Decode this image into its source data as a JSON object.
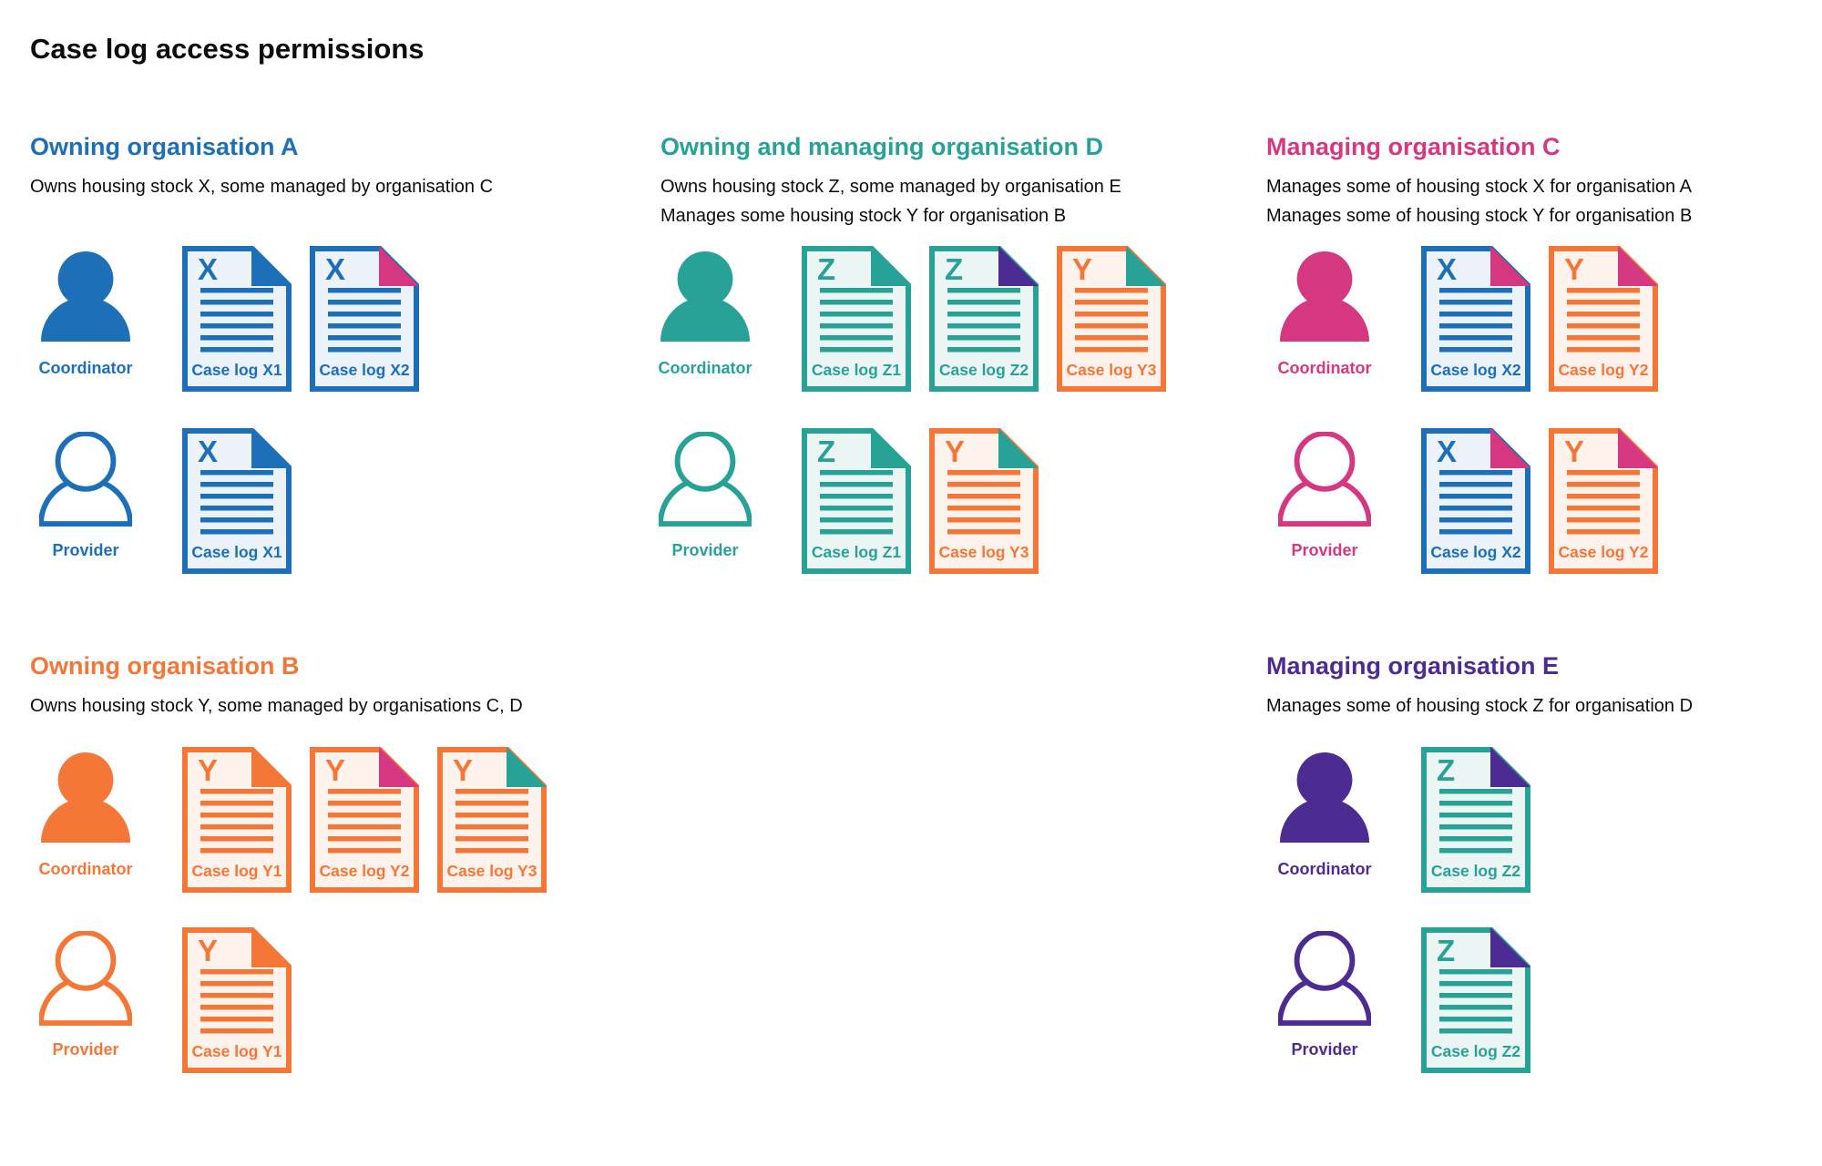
{
  "title": "Case log access permissions",
  "colors": {
    "blue": "#1d70b8",
    "teal": "#28a197",
    "pink": "#d53880",
    "purple": "#4c2c92",
    "orange": "#f47738",
    "text": "#0b0c0c",
    "blue_tint": "#ebf2fa",
    "teal_tint": "#ebf6f4",
    "orange_tint": "#fdf3ec"
  },
  "sections": [
    {
      "id": "org-a",
      "heading": "Owning organisation A",
      "color": "blue",
      "description_lines": [
        "Owns housing stock X, some managed by organisation C"
      ],
      "rows": [
        {
          "role_label": "Coordinator",
          "person_style": "filled",
          "docs": [
            {
              "letter": "X",
              "label": "Case log X1",
              "doc_color": "blue",
              "corner_color": "blue"
            },
            {
              "letter": "X",
              "label": "Case log X2",
              "doc_color": "blue",
              "corner_color": "pink"
            }
          ]
        },
        {
          "role_label": "Provider",
          "person_style": "outline",
          "docs": [
            {
              "letter": "X",
              "label": "Case log X1",
              "doc_color": "blue",
              "corner_color": "blue"
            }
          ]
        }
      ]
    },
    {
      "id": "org-d",
      "heading": "Owning and managing organisation D",
      "color": "teal",
      "description_lines": [
        "Owns housing stock Z, some managed by organisation E",
        "Manages some housing stock Y for organisation B"
      ],
      "rows": [
        {
          "role_label": "Coordinator",
          "person_style": "filled",
          "docs": [
            {
              "letter": "Z",
              "label": "Case log Z1",
              "doc_color": "teal",
              "corner_color": "teal"
            },
            {
              "letter": "Z",
              "label": "Case log Z2",
              "doc_color": "teal",
              "corner_color": "purple"
            },
            {
              "letter": "Y",
              "label": "Case log Y3",
              "doc_color": "orange",
              "corner_color": "teal"
            }
          ]
        },
        {
          "role_label": "Provider",
          "person_style": "outline",
          "docs": [
            {
              "letter": "Z",
              "label": "Case log Z1",
              "doc_color": "teal",
              "corner_color": "teal"
            },
            {
              "letter": "Y",
              "label": "Case log Y3",
              "doc_color": "orange",
              "corner_color": "teal"
            }
          ]
        }
      ]
    },
    {
      "id": "org-c",
      "heading": "Managing organisation C",
      "color": "pink",
      "description_lines": [
        "Manages some of housing stock X for organisation A",
        "Manages some of housing stock Y for organisation B"
      ],
      "rows": [
        {
          "role_label": "Coordinator",
          "person_style": "filled",
          "docs": [
            {
              "letter": "X",
              "label": "Case log X2",
              "doc_color": "blue",
              "corner_color": "pink"
            },
            {
              "letter": "Y",
              "label": "Case log Y2",
              "doc_color": "orange",
              "corner_color": "pink"
            }
          ]
        },
        {
          "role_label": "Provider",
          "person_style": "outline",
          "docs": [
            {
              "letter": "X",
              "label": "Case log X2",
              "doc_color": "blue",
              "corner_color": "pink"
            },
            {
              "letter": "Y",
              "label": "Case log Y2",
              "doc_color": "orange",
              "corner_color": "pink"
            }
          ]
        }
      ]
    },
    {
      "id": "org-b",
      "heading": "Owning organisation B",
      "color": "orange",
      "description_lines": [
        "Owns housing stock Y, some managed by organisations C, D"
      ],
      "rows": [
        {
          "role_label": "Coordinator",
          "person_style": "filled",
          "docs": [
            {
              "letter": "Y",
              "label": "Case log Y1",
              "doc_color": "orange",
              "corner_color": "orange"
            },
            {
              "letter": "Y",
              "label": "Case log Y2",
              "doc_color": "orange",
              "corner_color": "pink"
            },
            {
              "letter": "Y",
              "label": "Case log Y3",
              "doc_color": "orange",
              "corner_color": "teal"
            }
          ]
        },
        {
          "role_label": "Provider",
          "person_style": "outline",
          "docs": [
            {
              "letter": "Y",
              "label": "Case log Y1",
              "doc_color": "orange",
              "corner_color": "orange"
            }
          ]
        }
      ]
    },
    {
      "id": "org-e",
      "heading": "Managing organisation E",
      "color": "purple",
      "description_lines": [
        "Manages some of housing stock Z for organisation D"
      ],
      "rows": [
        {
          "role_label": "Coordinator",
          "person_style": "filled",
          "docs": [
            {
              "letter": "Z",
              "label": "Case log Z2",
              "doc_color": "teal",
              "corner_color": "purple"
            }
          ]
        },
        {
          "role_label": "Provider",
          "person_style": "outline",
          "docs": [
            {
              "letter": "Z",
              "label": "Case log Z2",
              "doc_color": "teal",
              "corner_color": "purple"
            }
          ]
        }
      ]
    }
  ]
}
